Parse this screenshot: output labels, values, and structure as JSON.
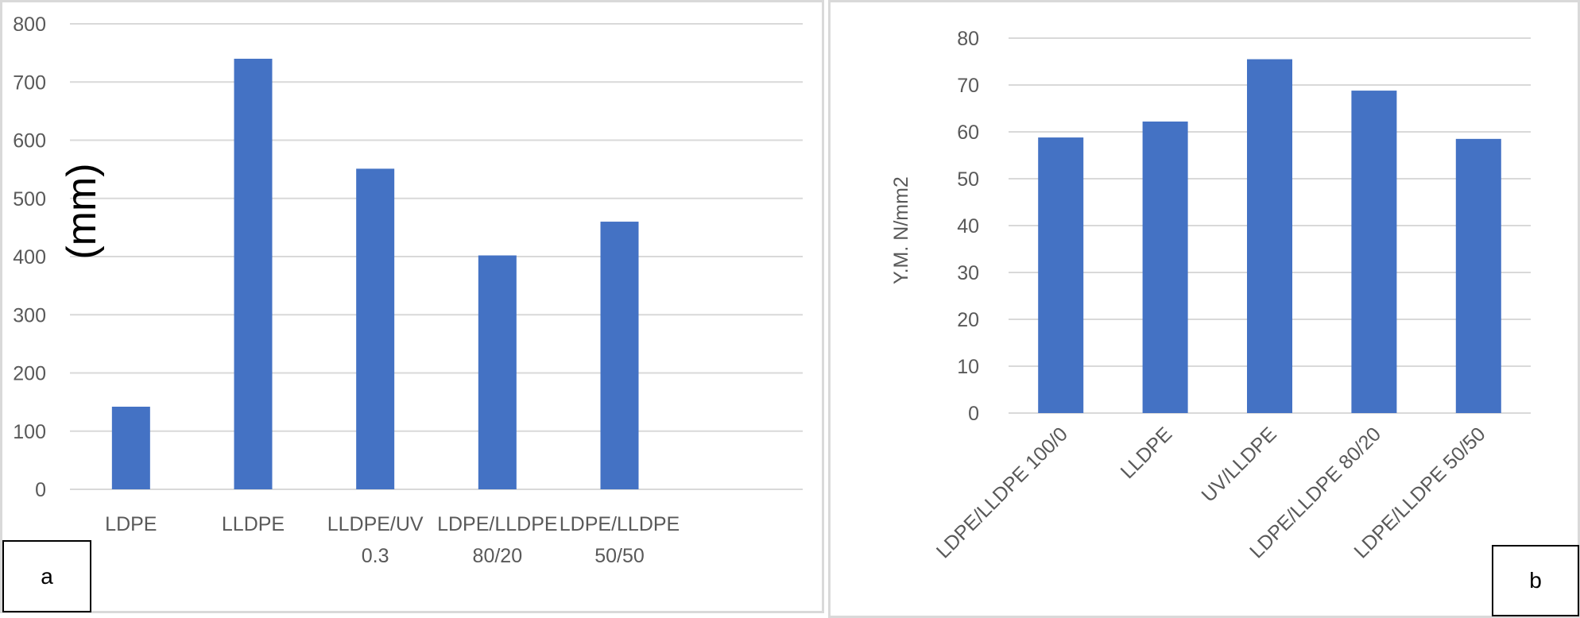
{
  "chart_data": [
    {
      "type": "bar",
      "panel_tag": "a",
      "title": "",
      "xlabel": "",
      "ylabel": "(mm)",
      "ylim": [
        0,
        800
      ],
      "yticks": [
        0,
        100,
        200,
        300,
        400,
        500,
        600,
        700,
        800
      ],
      "grid": true,
      "categories": [
        [
          "LDPE"
        ],
        [
          "LLDPE"
        ],
        [
          "LLDPE/UV",
          "0.3"
        ],
        [
          "LDPE/LLDPE",
          "80/20"
        ],
        [
          "LDPE/LLDPE",
          "50/50"
        ]
      ],
      "series": [
        {
          "values": [
            142,
            740,
            551,
            402,
            460
          ],
          "color": "#4472c4"
        }
      ]
    },
    {
      "type": "bar",
      "panel_tag": "b",
      "title": "",
      "xlabel": "",
      "ylabel": "Y.M. N/mm2",
      "ylim": [
        0,
        80
      ],
      "yticks": [
        0,
        10,
        20,
        30,
        40,
        50,
        60,
        70,
        80
      ],
      "grid": true,
      "categories": [
        "LDPE/LLDPE 100/0",
        "LLDPE",
        "UV/LLDPE",
        "LDPE/LLDPE 80/20",
        "LDPE/LLDPE 50/50"
      ],
      "series": [
        {
          "values": [
            58.8,
            62.2,
            75.5,
            68.8,
            58.5
          ],
          "color": "#4472c4"
        }
      ]
    }
  ]
}
